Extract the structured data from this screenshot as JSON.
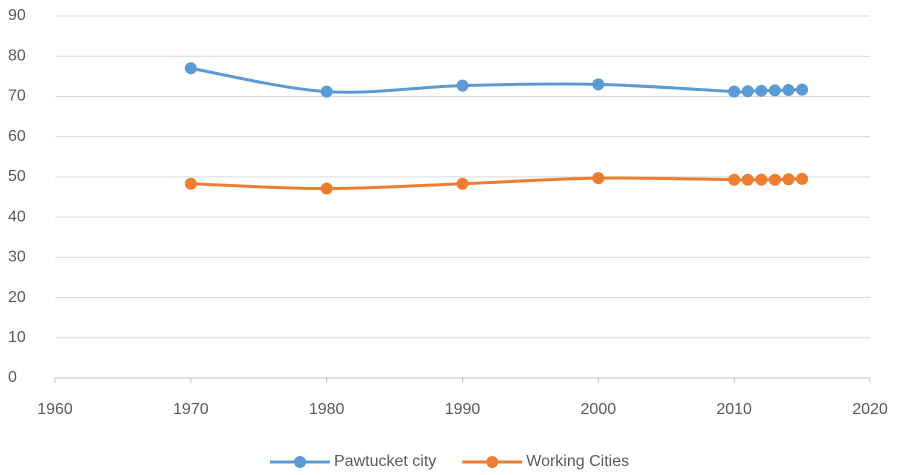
{
  "chart_data": {
    "type": "line",
    "smooth": true,
    "grid": true,
    "legend": "bottom",
    "x": [
      1970,
      1980,
      1990,
      2000,
      2010,
      2011,
      2012,
      2013,
      2014,
      2015
    ],
    "series": [
      {
        "name": "Pawtucket city",
        "color": "#5b9bd5",
        "values": [
          77,
          71.2,
          72.7,
          73,
          71.2,
          71.3,
          71.4,
          71.5,
          71.6,
          71.7
        ]
      },
      {
        "name": "Working Cities",
        "color": "#ed7d31",
        "values": [
          48.3,
          47.1,
          48.3,
          49.7,
          49.3,
          49.3,
          49.3,
          49.3,
          49.4,
          49.5
        ]
      }
    ],
    "xlim": [
      1960,
      2020
    ],
    "xticks": [
      1960,
      1970,
      1980,
      1990,
      2000,
      2010,
      2020
    ],
    "ylim": [
      0,
      90
    ],
    "yticks": [
      0,
      10,
      20,
      30,
      40,
      50,
      60,
      70,
      80,
      90
    ]
  }
}
